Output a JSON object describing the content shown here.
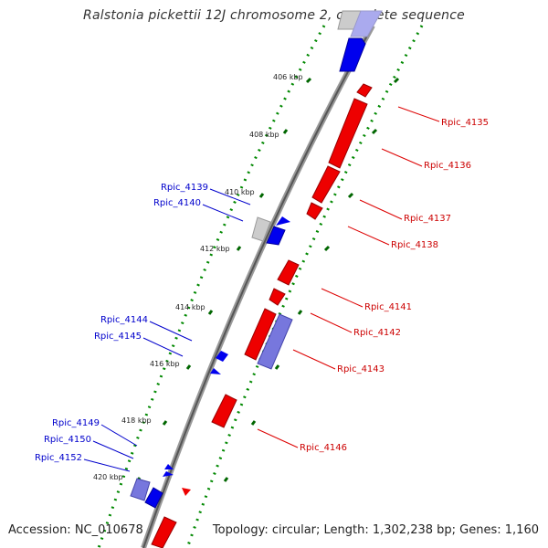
{
  "title": "Ralstonia pickettii 12J chromosome 2, complete sequence",
  "footer": {
    "accession": "Accession: NC_010678",
    "summary": "Topology: circular; Length: 1,302,238 bp; Genes: 1,160"
  },
  "colors": {
    "forward": "#0000ff",
    "reverse": "#ff0000",
    "forward_light": "#7777dd",
    "grey": "#aaaaaa",
    "backbone": "#888888",
    "tick_dot": "#008800"
  },
  "ticks": [
    {
      "label": "406 kbp",
      "kbp": 406
    },
    {
      "label": "408 kbp",
      "kbp": 408
    },
    {
      "label": "410 kbp",
      "kbp": 410
    },
    {
      "label": "412 kbp",
      "kbp": 412
    },
    {
      "label": "414 kbp",
      "kbp": 414
    },
    {
      "label": "416 kbp",
      "kbp": 416
    },
    {
      "label": "418 kbp",
      "kbp": 418
    },
    {
      "label": "420 kbp",
      "kbp": 420
    }
  ],
  "gene_labels_forward": [
    "Rpic_4139",
    "Rpic_4140",
    "Rpic_4144",
    "Rpic_4145",
    "Rpic_4149",
    "Rpic_4150",
    "Rpic_4152"
  ],
  "gene_labels_reverse": [
    "Rpic_4135",
    "Rpic_4136",
    "Rpic_4137",
    "Rpic_4138",
    "Rpic_4141",
    "Rpic_4142",
    "Rpic_4143",
    "Rpic_4146"
  ]
}
